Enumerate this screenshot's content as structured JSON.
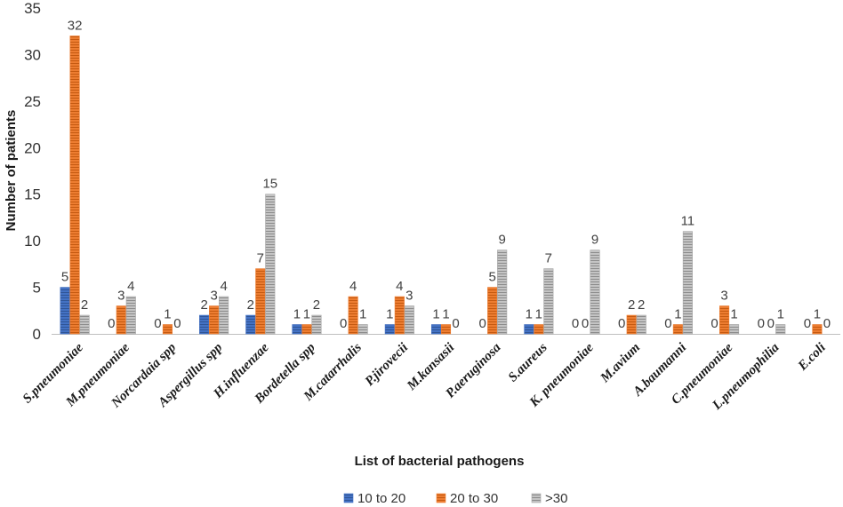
{
  "chart_data": {
    "type": "bar",
    "title": "",
    "xlabel": "List of bacterial pathogens",
    "ylabel": "Number of patients",
    "ylim": [
      0,
      35
    ],
    "yticks": [
      0,
      5,
      10,
      15,
      20,
      25,
      30,
      35
    ],
    "grid": false,
    "legend_position": "bottom",
    "categories": [
      "S.pneumoniae",
      "M.pneumoniae",
      "Norcardaia spp",
      "Aspergillus spp",
      "H.influenzae",
      "Bordetella spp",
      "M.catarrhalis",
      "P.jirovecii",
      "M.kansasii",
      "P.aeruginosa",
      "S.aureus",
      "K. pneumoniae",
      "M.avium",
      "A.baumanni",
      "C.pneumoniae",
      "L.pneumophilia",
      "E.coli"
    ],
    "series": [
      {
        "name": "10 to 20",
        "color": "#4472C4",
        "values": [
          5,
          0,
          0,
          2,
          2,
          1,
          0,
          1,
          1,
          0,
          1,
          0,
          0,
          0,
          0,
          0,
          0
        ],
        "labels": [
          "5",
          "0",
          "0",
          "2",
          "2",
          "1",
          "0",
          "1",
          "1",
          "0",
          "1",
          "0",
          "0",
          "0",
          "0",
          "0",
          "0"
        ]
      },
      {
        "name": "20 to 30",
        "color": "#ED7D31",
        "values": [
          32,
          3,
          1,
          3,
          7,
          1,
          4,
          4,
          1,
          5,
          1,
          0,
          2,
          1,
          3,
          0,
          1
        ],
        "labels": [
          "32",
          "3",
          "1",
          "3",
          "7",
          "1",
          "4",
          "4",
          "1",
          "5",
          "1",
          "0",
          "2",
          "1",
          "3",
          "0",
          "1"
        ]
      },
      {
        "name": ">30",
        "color": "#A5A5A5",
        "values": [
          2,
          4,
          0,
          4,
          15,
          2,
          1,
          3,
          0,
          9,
          7,
          9,
          2,
          11,
          1,
          1,
          0
        ],
        "labels": [
          "2",
          "4",
          "0",
          "4",
          "15",
          "2",
          "1",
          "3",
          "0",
          "9",
          "7",
          "9",
          "2",
          "11",
          "1",
          "1",
          "0"
        ]
      }
    ]
  }
}
